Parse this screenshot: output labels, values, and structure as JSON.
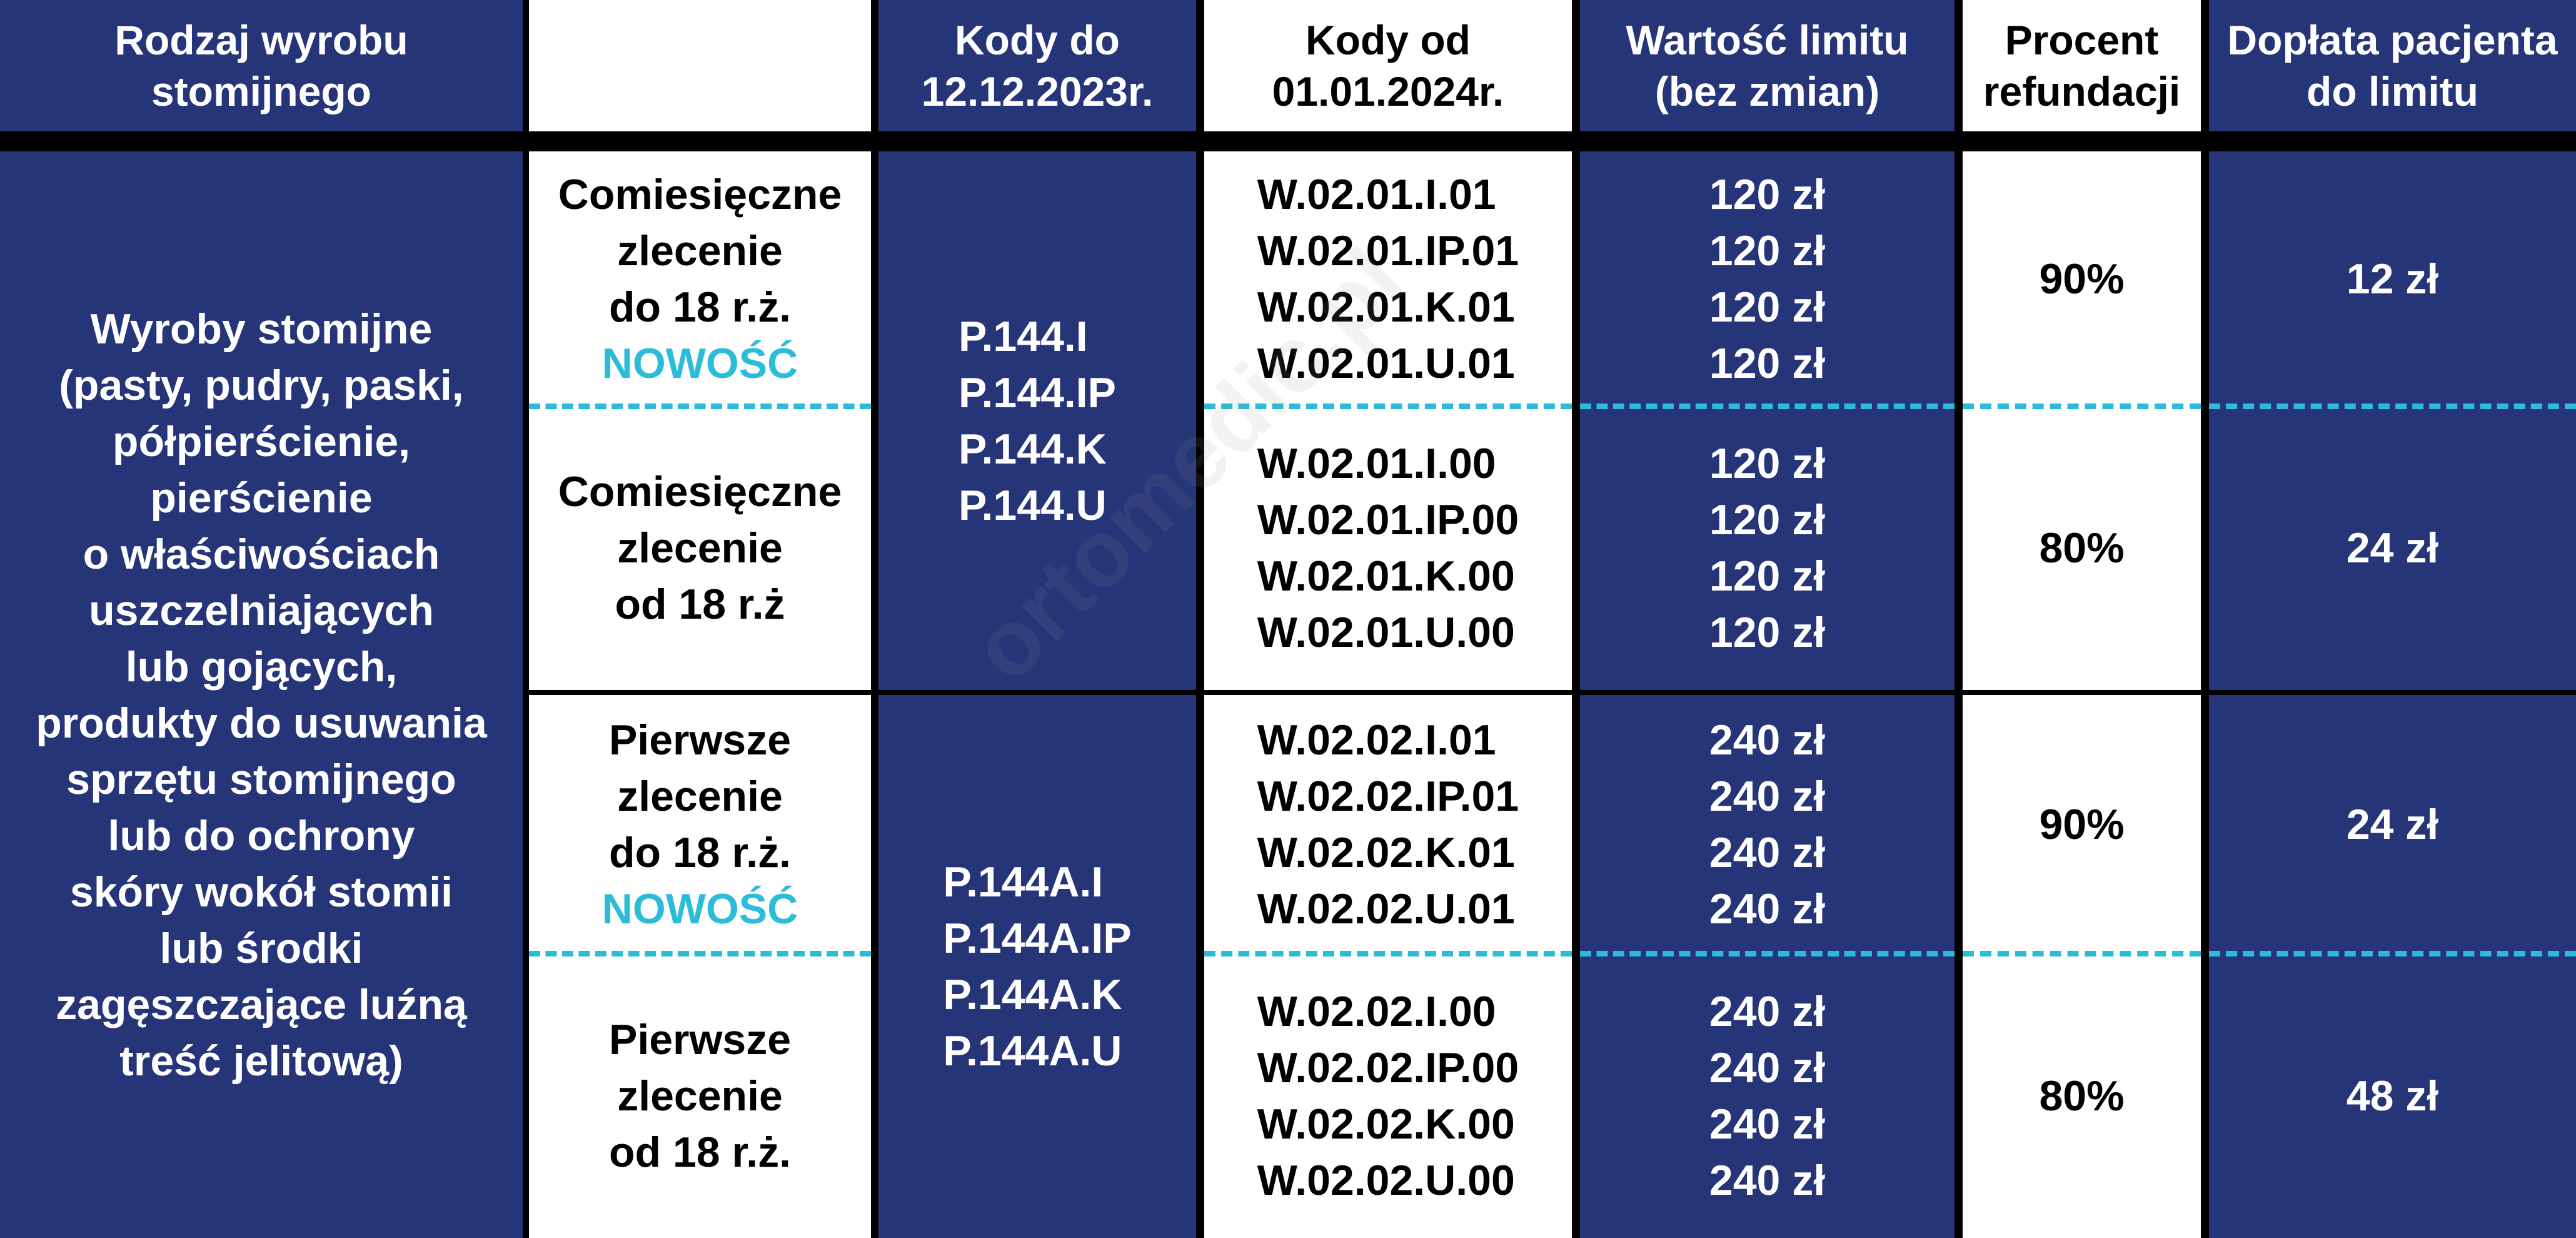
{
  "colors": {
    "navy": "#263478",
    "accent": "#2bbcd8",
    "separator": "#000000"
  },
  "header": {
    "col1": [
      "Rodzaj wyrobu",
      "stomijnego"
    ],
    "col2": "",
    "col3": [
      "Kody do",
      "12.12.2023r."
    ],
    "col4": [
      "Kody od",
      "01.01.2024r."
    ],
    "col5": [
      "Wartość limitu",
      "(bez zmian)"
    ],
    "col6": [
      "Procent",
      "refundacji"
    ],
    "col7": [
      "Dopłata pacjenta",
      "do limitu"
    ]
  },
  "product": [
    "Wyroby stomijne",
    "(pasty, pudry, paski,",
    "półpierścienie,",
    "pierścienie",
    "o właściwościach",
    "uszczelniających",
    "lub gojących,",
    "produkty do usuwania",
    "sprzętu stomijnego",
    "lub do ochrony",
    "skóry wokół stomii",
    "lub środki",
    "zagęszczające luźną",
    "treść jelitową)"
  ],
  "sections": [
    {
      "old_codes": [
        "P.144.I",
        "P.144.IP",
        "P.144.K",
        "P.144.U"
      ],
      "rows": [
        {
          "order": [
            "Comiesięczne",
            "zlecenie",
            "do 18 r.ż."
          ],
          "badge": "NOWOŚĆ",
          "codes": [
            "W.02.01.I.01",
            "W.02.01.IP.01",
            "W.02.01.K.01",
            "W.02.01.U.01"
          ],
          "limits": [
            "120 zł",
            "120 zł",
            "120 zł",
            "120 zł"
          ],
          "percent": "90%",
          "copay": "12 zł"
        },
        {
          "order": [
            "Comiesięczne",
            "zlecenie",
            "od 18 r.ż"
          ],
          "badge": "",
          "codes": [
            "W.02.01.I.00",
            "W.02.01.IP.00",
            "W.02.01.K.00",
            "W.02.01.U.00"
          ],
          "limits": [
            "120 zł",
            "120 zł",
            "120 zł",
            "120 zł"
          ],
          "percent": "80%",
          "copay": "24 zł"
        }
      ]
    },
    {
      "old_codes": [
        "P.144A.I",
        "P.144A.IP",
        "P.144A.K",
        "P.144A.U"
      ],
      "rows": [
        {
          "order": [
            "Pierwsze",
            "zlecenie",
            "do 18 r.ż."
          ],
          "badge": "NOWOŚĆ",
          "codes": [
            "W.02.02.I.01",
            "W.02.02.IP.01",
            "W.02.02.K.01",
            "W.02.02.U.01"
          ],
          "limits": [
            "240 zł",
            "240 zł",
            "240 zł",
            "240 zł"
          ],
          "percent": "90%",
          "copay": "24 zł"
        },
        {
          "order": [
            "Pierwsze",
            "zlecenie",
            "od 18 r.ż."
          ],
          "badge": "",
          "codes": [
            "W.02.02.I.00",
            "W.02.02.IP.00",
            "W.02.02.K.00",
            "W.02.02.U.00"
          ],
          "limits": [
            "240 zł",
            "240 zł",
            "240 zł",
            "240 zł"
          ],
          "percent": "80%",
          "copay": "48 zł"
        }
      ]
    }
  ],
  "watermark": "ortomedic.pl"
}
